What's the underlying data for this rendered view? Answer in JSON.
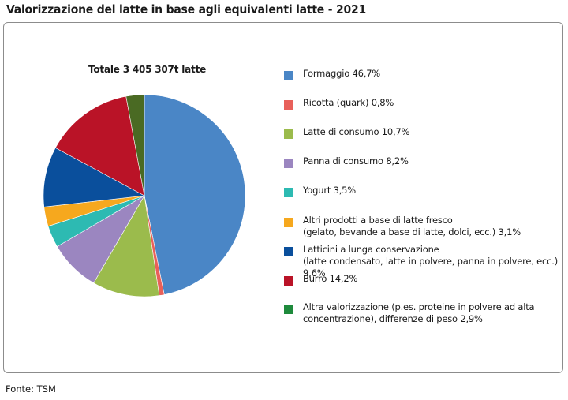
{
  "title": "Valorizzazione del latte in base agli equivalenti latte -  2021",
  "source": "Fonte: TSM",
  "chart_data": {
    "type": "pie",
    "title": "Totale 3 405 307t latte",
    "unit": "%",
    "legend_position": "right",
    "slices": [
      {
        "label": "Formaggio 46,7%",
        "value": 46.7,
        "color": "#4a86c6"
      },
      {
        "label": "Ricotta (quark) 0,8%",
        "value": 0.8,
        "color": "#e8605a"
      },
      {
        "label": "Latte di consumo 10,7%",
        "value": 10.7,
        "color": "#9bbb4c"
      },
      {
        "label": "Panna di consumo 8,2%",
        "value": 8.2,
        "color": "#9b86c0"
      },
      {
        "label": "Yogurt 3,5%",
        "value": 3.5,
        "color": "#2dbab2"
      },
      {
        "label": "Altri prodotti a base di latte fresco\n(gelato, bevande a base di latte, dolci, ecc.) 3,1%",
        "value": 3.1,
        "color": "#f6a81e"
      },
      {
        "label": "Latticini a lunga conservazione\n(latte condensato, latte in polvere, panna in polvere, ecc.) 9,6%",
        "value": 9.6,
        "color": "#0a4f9c"
      },
      {
        "label": "Burro 14,2%",
        "value": 14.2,
        "color": "#ba1327"
      },
      {
        "label": "Altra valorizzazione (p.es. proteine in polvere ad alta\nconcentrazione), differenze di peso 2,9%",
        "value": 2.9,
        "color": "#4a6a23",
        "legend_color": "#1e8a3c"
      }
    ]
  }
}
